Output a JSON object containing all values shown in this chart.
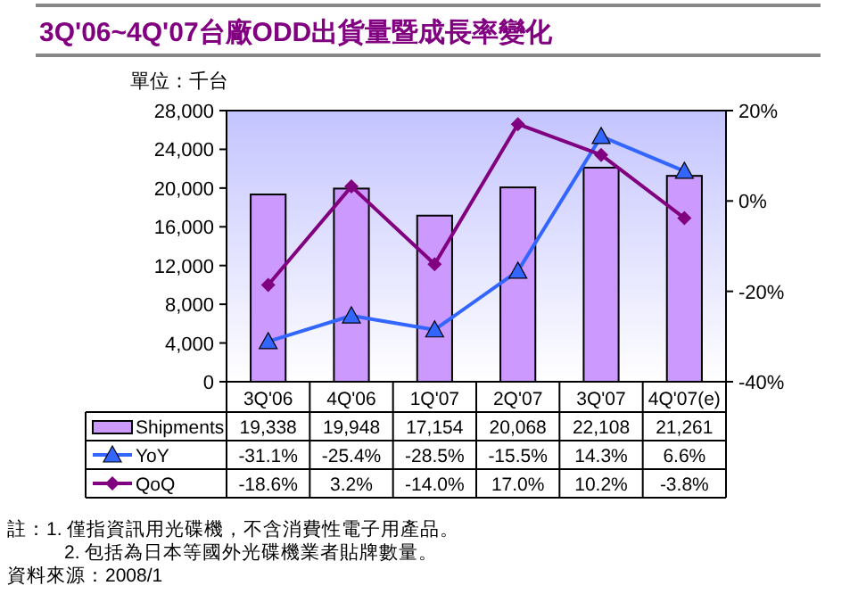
{
  "chart_data": {
    "type": "bar",
    "title": "3Q'06~4Q'07台廠ODD出貨量暨成長率變化",
    "ylabel": "單位：千台",
    "categories": [
      "3Q'06",
      "4Q'06",
      "1Q'07",
      "2Q'07",
      "3Q'07",
      "4Q'07(e)"
    ],
    "series": [
      {
        "name": "Shipments",
        "color": "#cc99ff",
        "values": [
          19338,
          19948,
          17154,
          20068,
          22108,
          21261
        ],
        "value_labels": [
          "19,338",
          "19,948",
          "17,154",
          "20,068",
          "22,108",
          "21,261"
        ]
      },
      {
        "name": "YoY",
        "type": "line",
        "axis": "y2",
        "color": "#3366ff",
        "marker": "triangle",
        "values": [
          -31.1,
          -25.4,
          -28.5,
          -15.5,
          14.3,
          6.6
        ],
        "value_labels": [
          "-31.1%",
          "-25.4%",
          "-28.5%",
          "-15.5%",
          "14.3%",
          "6.6%"
        ]
      },
      {
        "name": "QoQ",
        "type": "line",
        "axis": "y2",
        "color": "#800080",
        "marker": "diamond",
        "values": [
          -18.6,
          3.2,
          -14.0,
          17.0,
          10.2,
          -3.8
        ],
        "value_labels": [
          "-18.6%",
          "3.2%",
          "-14.0%",
          "17.0%",
          "10.2%",
          "-3.8%"
        ]
      }
    ],
    "ylim": [
      0,
      28000
    ],
    "yticks": [
      0,
      {
        "value": 4000,
        "label": "4,000"
      },
      {
        "value": 8000,
        "label": "8,000"
      },
      {
        "value": 12000,
        "label": "12,000"
      },
      {
        "value": 16000,
        "label": "16,000"
      },
      {
        "value": 20000,
        "label": "20,000"
      },
      {
        "value": 24000,
        "label": "24,000"
      },
      {
        "value": 28000,
        "label": "28,000"
      }
    ],
    "y2lim": [
      -40,
      20
    ],
    "y2ticks": [
      {
        "value": -40,
        "label": "-40%"
      },
      {
        "value": -20,
        "label": "-20%"
      },
      {
        "value": 0,
        "label": "0%"
      },
      {
        "value": 20,
        "label": "20%"
      }
    ],
    "legend": "bottom",
    "grid": false,
    "annotations": [
      "註：1. 僅指資訊用光碟機，不含消費性電子用產品。",
      "2. 包括為日本等國外光碟機業者貼牌數量。",
      "資料來源：2008/1"
    ]
  }
}
